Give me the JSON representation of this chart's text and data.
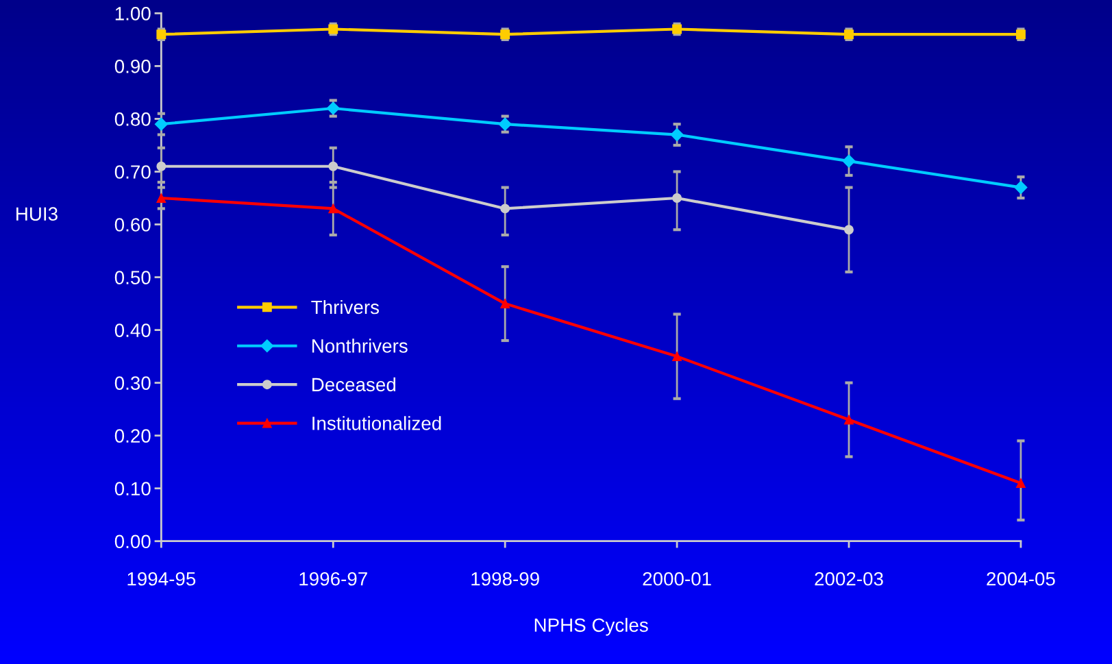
{
  "chart_data": {
    "type": "line",
    "xlabel": "NPHS Cycles",
    "ylabel": "HUI3",
    "categories": [
      "1994-95",
      "1996-97",
      "1998-99",
      "2000-01",
      "2002-03",
      "2004-05"
    ],
    "ylim": [
      0,
      1
    ],
    "yticks": [
      {
        "value": 0,
        "label": "0.00"
      },
      {
        "value": 0.1,
        "label": "0.10"
      },
      {
        "value": 0.2,
        "label": "0.20"
      },
      {
        "value": 0.3,
        "label": "0.30"
      },
      {
        "value": 0.4,
        "label": "0.40"
      },
      {
        "value": 0.5,
        "label": "0.50"
      },
      {
        "value": 0.6,
        "label": "0.60"
      },
      {
        "value": 0.7,
        "label": "0.70"
      },
      {
        "value": 0.8,
        "label": "0.80"
      },
      {
        "value": 0.9,
        "label": "0.90"
      },
      {
        "value": 1,
        "label": "1.00"
      }
    ],
    "grid": false,
    "legend": "left",
    "series": [
      {
        "name": "Thrivers",
        "color": "#ffcc00",
        "marker": "square",
        "values": [
          0.96,
          0.97,
          0.96,
          0.97,
          0.96,
          0.96
        ],
        "errors": [
          0.01,
          0.01,
          0.01,
          0.01,
          0.01,
          0.01
        ]
      },
      {
        "name": "Nonthrivers",
        "color": "#00ccff",
        "marker": "diamond",
        "values": [
          0.79,
          0.82,
          0.79,
          0.77,
          0.72,
          0.67
        ],
        "errors": [
          0.02,
          0.015,
          0.015,
          0.02,
          0.027,
          0.02
        ]
      },
      {
        "name": "Deceased",
        "color": "#cccccc",
        "marker": "circle",
        "values": [
          0.71,
          0.71,
          0.63,
          0.65,
          0.59,
          null
        ],
        "errors": [
          [
            0.68,
            0.745
          ],
          [
            0.67,
            0.745
          ],
          [
            0.58,
            0.67
          ],
          [
            0.59,
            0.7
          ],
          [
            0.51,
            0.67
          ],
          null
        ]
      },
      {
        "name": "Institutionalized",
        "color": "#ff0000",
        "marker": "triangle",
        "values": [
          0.65,
          0.63,
          0.45,
          0.35,
          0.23,
          0.11
        ],
        "errors": [
          0.02,
          [
            0.58,
            0.68
          ],
          [
            0.38,
            0.52
          ],
          [
            0.27,
            0.43
          ],
          [
            0.16,
            0.3
          ],
          [
            0.04,
            0.19
          ]
        ]
      }
    ]
  }
}
